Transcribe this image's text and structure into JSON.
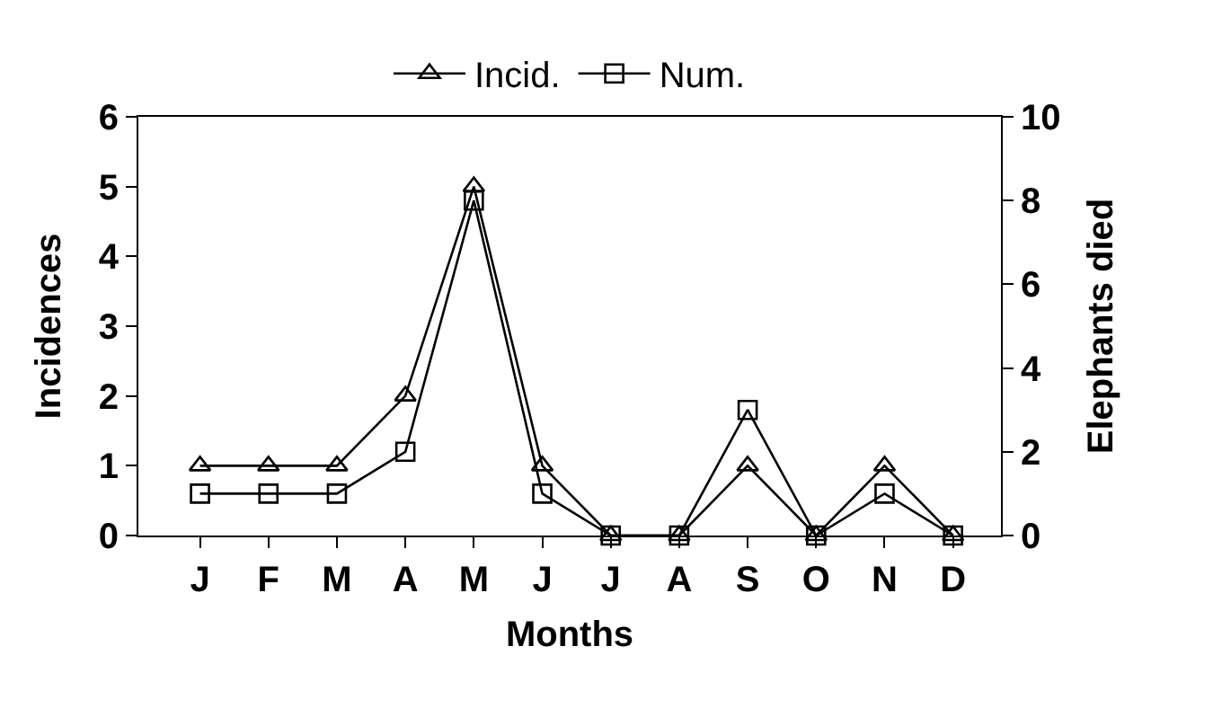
{
  "chart_data": {
    "type": "line",
    "xlabel": "Months",
    "ylabel": "Incidences",
    "y2label": "Elephants died",
    "categories": [
      "J",
      "F",
      "M",
      "A",
      "M",
      "J",
      "J",
      "A",
      "S",
      "O",
      "N",
      "D"
    ],
    "series": [
      {
        "name": "Incid.",
        "color": "#000000",
        "marker": "triangle",
        "values": [
          1,
          1,
          1,
          2,
          5,
          1,
          0,
          0,
          1,
          0,
          1,
          0
        ]
      },
      {
        "name": "Num.",
        "color": "#000000",
        "marker": "square",
        "axis": "y2",
        "values": [
          1,
          1,
          1,
          2,
          8,
          1,
          0,
          0,
          3,
          0,
          1,
          0
        ]
      }
    ],
    "ylim": [
      0,
      6
    ],
    "yticks": [
      0,
      1,
      2,
      3,
      4,
      5,
      6
    ],
    "y2lim": [
      0,
      10
    ],
    "y2ticks": [
      0,
      2,
      4,
      6,
      8,
      10
    ],
    "legend": "top",
    "grid": false,
    "line_style": "solid"
  }
}
